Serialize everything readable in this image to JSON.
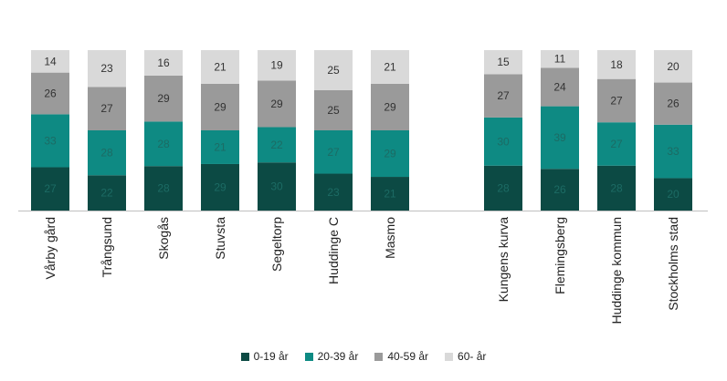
{
  "chart_data": {
    "type": "bar",
    "stacked": true,
    "normalized_percent": true,
    "categories": [
      "Vårby gård",
      "Trångsund",
      "Skogås",
      "Stuvsta",
      "Segeltorp",
      "Huddinge C",
      "Masmo",
      "Kungens kurva",
      "Flemingsberg",
      "Huddinge kommun",
      "Stockholms stad"
    ],
    "series": [
      {
        "name": "0-19 år",
        "color": "#0c4a44",
        "values": [
          27,
          22,
          28,
          29,
          30,
          23,
          21,
          28,
          26,
          28,
          20
        ]
      },
      {
        "name": "20-39 år",
        "color": "#0e8a83",
        "values": [
          33,
          28,
          28,
          21,
          22,
          27,
          29,
          30,
          39,
          27,
          33
        ]
      },
      {
        "name": "40-59 år",
        "color": "#9a9a9a",
        "values": [
          26,
          27,
          29,
          29,
          29,
          25,
          29,
          27,
          24,
          27,
          26
        ]
      },
      {
        "name": "60- år",
        "color": "#d9d9d9",
        "values": [
          14,
          23,
          16,
          21,
          19,
          25,
          21,
          15,
          11,
          18,
          20
        ]
      }
    ],
    "legend_position": "bottom",
    "grid": false
  }
}
